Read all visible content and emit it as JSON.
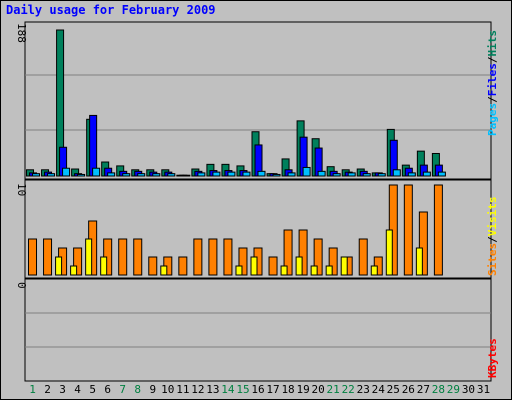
{
  "title": "Daily usage for February 2009",
  "colors": {
    "background": "#c0c0c0",
    "grid": "#808080",
    "hits": "#00805c",
    "files": "#0000ff",
    "pages": "#00c0ff",
    "visits": "#ffff00",
    "sites": "#ff8000",
    "kbytes": "#ff0000",
    "weekday_label": "#000000",
    "weekend_label": "#008040",
    "title": "#0000ff"
  },
  "chart_data": [
    {
      "type": "bar",
      "panel": "top",
      "y_axis_label": "188",
      "ylim": [
        0,
        188
      ],
      "grid": true,
      "legend": "right (vertical)",
      "legend_parts": [
        "Pages",
        "/",
        "Files",
        "/",
        "Hits"
      ],
      "categories": [
        "1",
        "2",
        "3",
        "4",
        "5",
        "6",
        "7",
        "8",
        "9",
        "10",
        "11",
        "12",
        "13",
        "14",
        "15",
        "16",
        "17",
        "18",
        "19",
        "20",
        "21",
        "22",
        "23",
        "24",
        "25",
        "26",
        "27",
        "28",
        "29",
        "30",
        "31"
      ],
      "series": [
        {
          "name": "Hits",
          "values": [
            8,
            8,
            188,
            9,
            73,
            18,
            13,
            8,
            8,
            8,
            1,
            9,
            15,
            15,
            13,
            57,
            3,
            22,
            71,
            48,
            12,
            8,
            9,
            4,
            60,
            14,
            32,
            29,
            0,
            0,
            0
          ]
        },
        {
          "name": "Files",
          "values": [
            4,
            5,
            37,
            3,
            78,
            10,
            6,
            6,
            5,
            5,
            1,
            6,
            7,
            7,
            7,
            40,
            3,
            8,
            50,
            36,
            6,
            5,
            6,
            4,
            46,
            10,
            14,
            14,
            0,
            0,
            0
          ]
        },
        {
          "name": "Pages",
          "values": [
            3,
            3,
            10,
            2,
            10,
            4,
            3,
            3,
            3,
            3,
            1,
            4,
            5,
            5,
            5,
            6,
            2,
            4,
            11,
            6,
            3,
            4,
            3,
            3,
            8,
            4,
            5,
            5,
            0,
            0,
            0
          ]
        }
      ]
    },
    {
      "type": "bar",
      "panel": "middle",
      "y_axis_label": "10",
      "ylim": [
        0,
        10
      ],
      "grid": false,
      "legend": "right (vertical)",
      "legend_parts": [
        "Sites",
        "/",
        "Visits"
      ],
      "categories": [
        "1",
        "2",
        "3",
        "4",
        "5",
        "6",
        "7",
        "8",
        "9",
        "10",
        "11",
        "12",
        "13",
        "14",
        "15",
        "16",
        "17",
        "18",
        "19",
        "20",
        "21",
        "22",
        "23",
        "24",
        "25",
        "26",
        "27",
        "28",
        "29",
        "30",
        "31"
      ],
      "series": [
        {
          "name": "Sites",
          "values": [
            4,
            4,
            3,
            3,
            6,
            4,
            4,
            4,
            2,
            2,
            2,
            4,
            4,
            4,
            3,
            3,
            2,
            5,
            5,
            4,
            3,
            2,
            4,
            2,
            10,
            10,
            7,
            10,
            0,
            0,
            0
          ]
        },
        {
          "name": "Visits",
          "values": [
            0,
            0,
            2,
            1,
            4,
            2,
            0,
            0,
            0,
            1,
            0,
            0,
            0,
            0,
            1,
            2,
            0,
            1,
            2,
            1,
            1,
            2,
            0,
            1,
            5,
            0,
            3,
            0,
            0,
            0,
            0
          ]
        }
      ]
    },
    {
      "type": "bar",
      "panel": "bottom",
      "y_axis_label": "0",
      "ylim": [
        0,
        1
      ],
      "grid": true,
      "legend": "right (vertical)",
      "legend_parts": [
        "KBytes"
      ],
      "categories": [
        "1",
        "2",
        "3",
        "4",
        "5",
        "6",
        "7",
        "8",
        "9",
        "10",
        "11",
        "12",
        "13",
        "14",
        "15",
        "16",
        "17",
        "18",
        "19",
        "20",
        "21",
        "22",
        "23",
        "24",
        "25",
        "26",
        "27",
        "28",
        "29",
        "30",
        "31"
      ],
      "series": [
        {
          "name": "KBytes",
          "values": [
            0,
            0,
            0,
            0,
            0,
            0,
            0,
            0,
            0,
            0,
            0,
            0,
            0,
            0,
            0,
            0,
            0,
            0,
            0,
            0,
            0,
            0,
            0,
            0,
            0,
            0,
            0,
            0,
            0,
            0,
            0
          ]
        }
      ]
    }
  ],
  "weekend_days": [
    1,
    7,
    8,
    14,
    15,
    21,
    22,
    28,
    29
  ]
}
